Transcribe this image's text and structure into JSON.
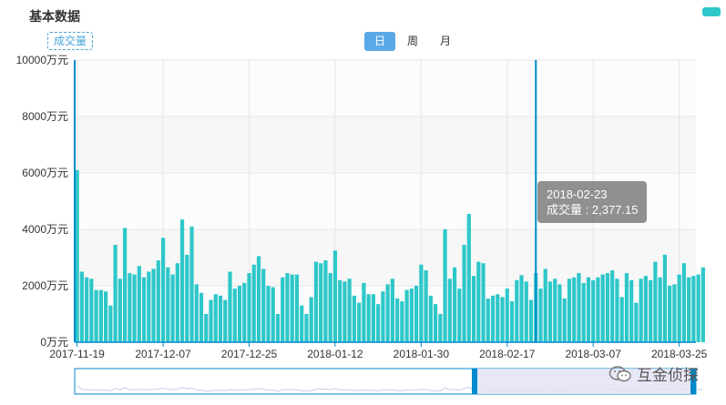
{
  "header": {
    "title": "基本数据"
  },
  "metric": {
    "label": "成交量"
  },
  "period_tabs": [
    {
      "label": "日",
      "active": true
    },
    {
      "label": "周",
      "active": false
    },
    {
      "label": "月",
      "active": false
    }
  ],
  "colors": {
    "bar": "#2ec7c9",
    "axis": "#008acd",
    "tab_active": "#5aa9e6",
    "metric_tag_text": "#4aa3d8",
    "slider_fill": "#e3e3f5",
    "slider_border": "#008acd"
  },
  "tooltip": {
    "date": "2018-02-23",
    "label": "成交量",
    "value": "2,377.15"
  },
  "watermark": {
    "text": "互金侦探",
    "icon": "wechat-icon"
  },
  "chart_data": {
    "type": "bar",
    "x_start": "2017-11-19",
    "x_end": "2018-03-28",
    "ylim": [
      0,
      10000
    ],
    "ytick_values": [
      0,
      2000,
      4000,
      6000,
      8000,
      10000
    ],
    "ytick_labels": [
      "0万元",
      "2000万元",
      "4000万元",
      "6000万元",
      "8000万元",
      "10000万元"
    ],
    "xtick_labels": [
      "2017-11-19",
      "2017-12-07",
      "2017-12-25",
      "2018-01-12",
      "2018-01-30",
      "2018-02-17",
      "2018-03-07",
      "2018-03-25"
    ],
    "grid": true,
    "cursor_date": "2018-02-23",
    "series": [
      {
        "name": "成交量",
        "values": [
          6100,
          2500,
          2300,
          2250,
          1850,
          1850,
          1800,
          1300,
          3450,
          2250,
          4050,
          2450,
          2400,
          2700,
          2300,
          2500,
          2600,
          2900,
          3700,
          2650,
          2400,
          2800,
          4350,
          3100,
          4100,
          2050,
          1750,
          1000,
          1500,
          1700,
          1650,
          1500,
          2500,
          1900,
          2000,
          2100,
          2450,
          2750,
          3050,
          2600,
          2000,
          1950,
          1000,
          2300,
          2450,
          2400,
          2400,
          1300,
          1000,
          1600,
          2850,
          2800,
          2900,
          2450,
          3250,
          2200,
          2150,
          2250,
          1650,
          1400,
          2100,
          1700,
          1700,
          1350,
          1800,
          2050,
          2250,
          1550,
          1450,
          1850,
          1900,
          2000,
          2750,
          2550,
          1650,
          1350,
          1000,
          4000,
          2250,
          2650,
          1900,
          3450,
          4550,
          2350,
          2850,
          2800,
          1550,
          1650,
          1700,
          1600,
          1900,
          1450,
          2200,
          2377.15,
          2150,
          1500,
          2450,
          1900,
          2600,
          2150,
          2250,
          2050,
          1550,
          2250,
          2300,
          2450,
          2100,
          2300,
          2200,
          2300,
          2400,
          2450,
          2550,
          2250,
          1600,
          2450,
          2200,
          1400,
          2250,
          2350,
          2200,
          2850,
          2300,
          3100,
          2000,
          2050,
          2400,
          2800,
          2300,
          2350,
          2400,
          2650
        ]
      }
    ]
  }
}
